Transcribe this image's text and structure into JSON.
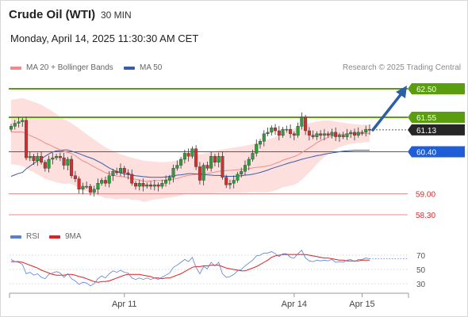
{
  "header": {
    "instrument": "Crude Oil (WTI)",
    "timeframe": "30 MIN",
    "datetime": "Monday, April 14, 2025 11:30:30 AM CET"
  },
  "legend": {
    "ma20_label": "MA 20 + Bollinger Bands",
    "ma50_label": "MA 50",
    "credit": "Research © 2025 Trading Central",
    "rsi_label": "RSI",
    "rsi_ma_label": "9MA"
  },
  "colors": {
    "bullish": "#2e9e3a",
    "bearish": "#d32f2f",
    "bollinger_fill": "#fde0de",
    "ma20": "#f08a8a",
    "ma50": "#3a5ba8",
    "resistance": "#5a9e10",
    "pivot": "#1f5ed6",
    "support": "#f08a8a",
    "last_price": "#262626",
    "arrow": "#2c5fa8",
    "rsi": "#5a7fd1",
    "rsi_ma": "#e02020"
  },
  "chart_data": {
    "type": "candlestick",
    "price_axis": {
      "min": 57.8,
      "max": 63.0
    },
    "levels": [
      {
        "label": "62.50",
        "value": 62.5,
        "kind": "resistance"
      },
      {
        "label": "61.55",
        "value": 61.55,
        "kind": "resistance"
      },
      {
        "label": "61.13",
        "value": 61.13,
        "kind": "last"
      },
      {
        "label": "60.40",
        "value": 60.4,
        "kind": "pivot"
      },
      {
        "label": "59.00",
        "value": 59.0,
        "kind": "support"
      },
      {
        "label": "58.30",
        "value": 58.3,
        "kind": "support"
      }
    ],
    "x_labels": [
      "Apr 11",
      "Apr 14",
      "Apr 15"
    ],
    "x_label_index": [
      30,
      75,
      93
    ],
    "candles_close": [
      61.25,
      61.35,
      61.4,
      61.45,
      60.2,
      60.25,
      60.1,
      60.25,
      60.05,
      59.85,
      60.15,
      60.2,
      60.25,
      60.2,
      59.95,
      60.15,
      59.6,
      59.5,
      59.15,
      59.25,
      59.25,
      59.05,
      59.15,
      59.35,
      59.45,
      59.35,
      59.6,
      59.75,
      59.7,
      59.85,
      59.7,
      59.65,
      59.35,
      59.25,
      59.35,
      59.25,
      59.3,
      59.25,
      59.3,
      59.25,
      59.35,
      59.45,
      59.55,
      59.85,
      59.95,
      60.15,
      60.35,
      60.25,
      60.5,
      59.9,
      59.45,
      59.95,
      59.85,
      60.25,
      60.05,
      60.25,
      59.55,
      59.3,
      59.35,
      59.45,
      59.65,
      59.75,
      59.95,
      60.15,
      60.35,
      60.65,
      60.75,
      61.0,
      61.05,
      61.2,
      61.1,
      60.95,
      61.15,
      61.15,
      61.0,
      60.95,
      61.25,
      61.55,
      61.1,
      60.95,
      60.9,
      61.0,
      60.95,
      61.0,
      60.95,
      61.05,
      60.9,
      60.95,
      60.9,
      61.0,
      61.05,
      60.95,
      61.05,
      61.05,
      61.15,
      61.13
    ],
    "ma50": [
      59.58,
      59.63,
      59.68,
      59.71,
      59.83,
      59.92,
      60.01,
      60.09,
      60.16,
      60.25,
      60.33,
      60.39,
      60.43,
      60.44,
      60.46,
      60.46,
      60.42,
      60.38,
      60.34,
      60.29,
      60.24,
      60.2,
      60.15,
      60.08,
      60.02,
      59.94,
      59.86,
      59.8,
      59.74,
      59.7,
      59.66,
      59.64,
      59.62,
      59.6,
      59.59,
      59.57,
      59.56,
      59.55,
      59.55,
      59.55,
      59.55,
      59.56,
      59.58,
      59.6,
      59.62,
      59.63,
      59.65,
      59.67,
      59.67,
      59.66,
      59.65,
      59.64,
      59.63,
      59.62,
      59.61,
      59.61,
      59.6,
      59.58,
      59.58,
      59.58,
      59.59,
      59.6,
      59.62,
      59.63,
      59.65,
      59.68,
      59.71,
      59.75,
      59.79,
      59.84,
      59.88,
      59.92,
      59.96,
      60.0,
      60.04,
      60.07,
      60.11,
      60.15,
      60.18,
      60.21,
      60.24,
      60.27,
      60.29,
      60.32,
      60.34,
      60.36,
      60.38,
      60.4,
      60.42,
      60.43,
      60.44,
      60.45,
      60.45,
      60.45,
      60.45,
      60.45
    ],
    "ma20": [
      61.06,
      61.06,
      61.06,
      61.06,
      61.0,
      60.94,
      60.89,
      60.83,
      60.77,
      60.69,
      60.64,
      60.58,
      60.52,
      60.46,
      60.41,
      60.38,
      60.34,
      60.27,
      60.18,
      60.09,
      60.04,
      59.97,
      59.9,
      59.83,
      59.77,
      59.7,
      59.67,
      59.63,
      59.59,
      59.58,
      59.56,
      59.54,
      59.5,
      59.48,
      59.46,
      59.42,
      59.42,
      59.43,
      59.44,
      59.44,
      59.44,
      59.46,
      59.47,
      59.49,
      59.51,
      59.55,
      59.59,
      59.61,
      59.63,
      59.65,
      59.66,
      59.67,
      59.68,
      59.7,
      59.72,
      59.75,
      59.76,
      59.77,
      59.78,
      59.79,
      59.8,
      59.81,
      59.82,
      59.84,
      59.86,
      59.88,
      59.89,
      59.91,
      59.93,
      59.96,
      60.01,
      60.06,
      60.12,
      60.16,
      60.2,
      60.24,
      60.29,
      60.37,
      60.45,
      60.53,
      60.61,
      60.7,
      60.77,
      60.83,
      60.88,
      60.92,
      60.95,
      60.97,
      60.98,
      60.99,
      61.0,
      61.0,
      61.0,
      61.0,
      61.01,
      61.01
    ],
    "bb_upper": [
      62.13,
      62.15,
      62.17,
      62.19,
      62.15,
      62.11,
      62.06,
      62.02,
      61.97,
      61.89,
      61.82,
      61.74,
      61.66,
      61.57,
      61.49,
      61.42,
      61.35,
      61.27,
      61.18,
      61.08,
      60.99,
      60.9,
      60.81,
      60.72,
      60.63,
      60.55,
      60.49,
      60.43,
      60.37,
      60.32,
      60.28,
      60.24,
      60.21,
      60.17,
      60.14,
      60.11,
      60.09,
      60.08,
      60.07,
      60.06,
      60.05,
      60.06,
      60.07,
      60.09,
      60.11,
      60.15,
      60.2,
      60.23,
      60.27,
      60.3,
      60.32,
      60.34,
      60.36,
      60.39,
      60.42,
      60.46,
      60.48,
      60.5,
      60.52,
      60.54,
      60.56,
      60.58,
      60.6,
      60.63,
      60.66,
      60.7,
      60.73,
      60.77,
      60.81,
      60.85,
      60.9,
      60.96,
      61.02,
      61.08,
      61.13,
      61.18,
      61.22,
      61.27,
      61.31,
      61.35,
      61.38,
      61.41,
      61.43,
      61.44,
      61.44,
      61.43,
      61.41,
      61.39,
      61.37,
      61.35,
      61.33,
      61.32,
      61.31,
      61.3,
      61.3,
      61.3
    ],
    "bb_lower": [
      59.99,
      59.97,
      59.95,
      59.93,
      59.85,
      59.77,
      59.72,
      59.64,
      59.57,
      59.49,
      59.46,
      59.42,
      59.38,
      59.35,
      59.33,
      59.34,
      59.33,
      59.27,
      59.18,
      59.1,
      59.09,
      59.04,
      58.99,
      58.94,
      58.91,
      58.85,
      58.85,
      58.83,
      58.81,
      58.84,
      58.84,
      58.84,
      58.79,
      58.79,
      58.78,
      58.73,
      58.75,
      58.78,
      58.81,
      58.82,
      58.83,
      58.86,
      58.87,
      58.89,
      58.91,
      58.95,
      58.98,
      58.99,
      58.99,
      59.0,
      59.0,
      59.0,
      59.0,
      59.01,
      59.02,
      59.04,
      59.04,
      59.04,
      59.04,
      59.04,
      59.04,
      59.04,
      59.04,
      59.05,
      59.06,
      59.06,
      59.05,
      59.05,
      59.05,
      59.07,
      59.12,
      59.16,
      59.22,
      59.24,
      59.27,
      59.3,
      59.36,
      59.47,
      59.59,
      59.71,
      59.84,
      59.99,
      60.11,
      60.22,
      60.32,
      60.41,
      60.49,
      60.55,
      60.59,
      60.63,
      60.67,
      60.68,
      60.69,
      60.7,
      60.72,
      60.72
    ],
    "rsi_panel": {
      "levels": [
        70,
        50,
        30
      ],
      "rsi": [
        64,
        61,
        60,
        57,
        44,
        46,
        42,
        44,
        39,
        37,
        43,
        45,
        47,
        45,
        39,
        44,
        37,
        34,
        29,
        32,
        31,
        27,
        30,
        37,
        41,
        38,
        44,
        48,
        46,
        49,
        46,
        45,
        38,
        36,
        38,
        36,
        38,
        36,
        38,
        36,
        39,
        42,
        45,
        53,
        56,
        60,
        64,
        61,
        67,
        53,
        44,
        54,
        51,
        60,
        55,
        60,
        44,
        39,
        40,
        43,
        48,
        50,
        55,
        59,
        63,
        69,
        70,
        73,
        73,
        75,
        72,
        68,
        72,
        72,
        67,
        66,
        72,
        77,
        66,
        62,
        61,
        63,
        62,
        63,
        62,
        64,
        60,
        61,
        60,
        63,
        64,
        61,
        64,
        64,
        66,
        65
      ],
      "rsi_ma": [
        61,
        61,
        61,
        60,
        58,
        56,
        54,
        52,
        49,
        47,
        45,
        43,
        42,
        42,
        42,
        43,
        43,
        42,
        40,
        39,
        37,
        35,
        33,
        32,
        33,
        33,
        34,
        36,
        38,
        40,
        42,
        43,
        43,
        43,
        43,
        42,
        41,
        40,
        38,
        38,
        37,
        38,
        38,
        40,
        42,
        44,
        47,
        50,
        53,
        54,
        54,
        55,
        55,
        56,
        56,
        56,
        54,
        52,
        51,
        50,
        49,
        48,
        48,
        50,
        52,
        54,
        57,
        60,
        63,
        67,
        69,
        70,
        71,
        71,
        71,
        71,
        71,
        71,
        71,
        70,
        69,
        68,
        67,
        66,
        66,
        65,
        64,
        63,
        63,
        62,
        62,
        62,
        62,
        63,
        63,
        63
      ]
    }
  }
}
